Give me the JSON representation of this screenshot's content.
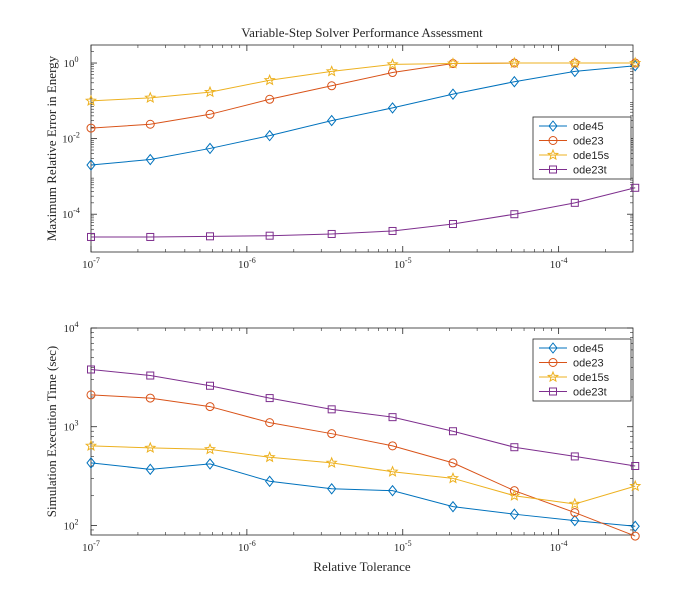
{
  "chart_data": [
    {
      "type": "line",
      "title": "Variable-Step Solver Performance Assessment",
      "ylabel": "Maximum Relative Error in Energy",
      "xlabel": "",
      "xscale": "log",
      "yscale": "log",
      "xlim": [
        1e-07,
        0.0003
      ],
      "ylim": [
        1e-05,
        3
      ],
      "grid": false,
      "legend_position": "right",
      "x_ticks": [
        {
          "value": 1e-07,
          "base": "10",
          "exp": "-7"
        },
        {
          "value": 1e-06,
          "base": "10",
          "exp": "-6"
        },
        {
          "value": 1e-05,
          "base": "10",
          "exp": "-5"
        },
        {
          "value": 0.0001,
          "base": "10",
          "exp": "-4"
        }
      ],
      "y_ticks": [
        {
          "value": 0.0001,
          "base": "10",
          "exp": "-4"
        },
        {
          "value": 0.01,
          "base": "10",
          "exp": "-2"
        },
        {
          "value": 1,
          "base": "10",
          "exp": "0"
        }
      ],
      "x": [
        1e-07,
        2.4e-07,
        5.8e-07,
        1.4e-06,
        3.5e-06,
        8.6e-06,
        2.1e-05,
        5.2e-05,
        0.000127,
        0.00031
      ],
      "series": [
        {
          "name": "ode45",
          "color": "#0072BD",
          "marker": "diamond",
          "values": [
            0.002,
            0.0028,
            0.0055,
            0.012,
            0.03,
            0.065,
            0.15,
            0.32,
            0.6,
            0.85
          ]
        },
        {
          "name": "ode23",
          "color": "#D95319",
          "marker": "circle",
          "values": [
            0.019,
            0.024,
            0.044,
            0.11,
            0.25,
            0.56,
            0.97,
            1.0,
            1.0,
            1.0
          ]
        },
        {
          "name": "ode15s",
          "color": "#EDB120",
          "marker": "star",
          "values": [
            0.1,
            0.12,
            0.17,
            0.35,
            0.6,
            0.92,
            0.97,
            1.0,
            1.0,
            1.0
          ]
        },
        {
          "name": "ode23t",
          "color": "#7E2F8E",
          "marker": "square",
          "values": [
            2.5e-05,
            2.5e-05,
            2.6e-05,
            2.7e-05,
            3e-05,
            3.6e-05,
            5.5e-05,
            0.0001,
            0.0002,
            0.0005
          ]
        }
      ]
    },
    {
      "type": "line",
      "title": "",
      "ylabel": "Simulation Execution Time (sec)",
      "xlabel": "Relative Tolerance",
      "xscale": "log",
      "yscale": "log",
      "xlim": [
        1e-07,
        0.0003
      ],
      "ylim": [
        80,
        10000
      ],
      "grid": false,
      "legend_position": "top-right",
      "x_ticks": [
        {
          "value": 1e-07,
          "base": "10",
          "exp": "-7"
        },
        {
          "value": 1e-06,
          "base": "10",
          "exp": "-6"
        },
        {
          "value": 1e-05,
          "base": "10",
          "exp": "-5"
        },
        {
          "value": 0.0001,
          "base": "10",
          "exp": "-4"
        }
      ],
      "y_ticks": [
        {
          "value": 100,
          "base": "10",
          "exp": "2"
        },
        {
          "value": 1000,
          "base": "10",
          "exp": "3"
        },
        {
          "value": 10000,
          "base": "10",
          "exp": "4"
        }
      ],
      "x": [
        1e-07,
        2.4e-07,
        5.8e-07,
        1.4e-06,
        3.5e-06,
        8.6e-06,
        2.1e-05,
        5.2e-05,
        0.000127,
        0.00031
      ],
      "series": [
        {
          "name": "ode45",
          "color": "#0072BD",
          "marker": "diamond",
          "values": [
            430,
            370,
            420,
            280,
            235,
            225,
            155,
            130,
            112,
            98
          ]
        },
        {
          "name": "ode23",
          "color": "#D95319",
          "marker": "circle",
          "values": [
            2100,
            1950,
            1600,
            1100,
            850,
            640,
            430,
            225,
            135,
            78
          ]
        },
        {
          "name": "ode15s",
          "color": "#EDB120",
          "marker": "star",
          "values": [
            640,
            610,
            590,
            490,
            430,
            350,
            300,
            200,
            165,
            250
          ]
        },
        {
          "name": "ode23t",
          "color": "#7E2F8E",
          "marker": "square",
          "values": [
            3800,
            3300,
            2600,
            1950,
            1500,
            1250,
            900,
            620,
            500,
            400
          ]
        }
      ]
    }
  ]
}
